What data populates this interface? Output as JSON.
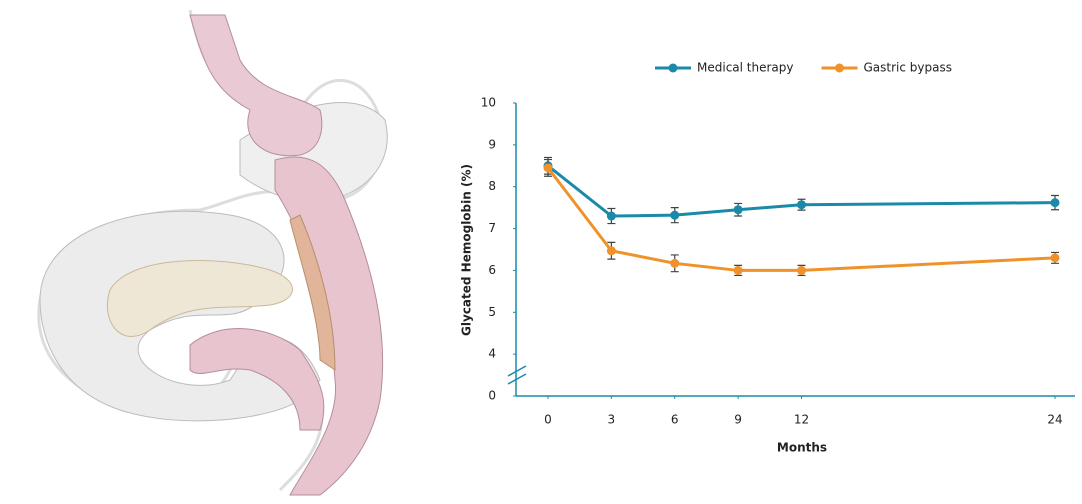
{
  "chart_data": {
    "type": "line",
    "x": [
      0,
      3,
      6,
      9,
      12,
      24
    ],
    "xlabel": "Months",
    "ylabel": "Glycated Hemoglobin (%)",
    "xlim": [
      0,
      24
    ],
    "xticks": [
      0,
      3,
      6,
      9,
      12,
      24
    ],
    "ylim": [
      0,
      10
    ],
    "yticks": [
      0,
      4,
      5,
      6,
      7,
      8,
      9,
      10
    ],
    "axis_break": [
      0,
      4
    ],
    "axis_color": "#1a8aa8",
    "legend": "top",
    "series": [
      {
        "name": "Medical therapy",
        "color": "#1a8aa8",
        "values": [
          8.5,
          7.3,
          7.32,
          7.45,
          7.57,
          7.62
        ],
        "errors": [
          0.2,
          0.18,
          0.18,
          0.15,
          0.13,
          0.17
        ]
      },
      {
        "name": "Gastric bypass",
        "color": "#f0922a",
        "values": [
          8.45,
          6.47,
          6.17,
          6.0,
          6.0,
          6.3
        ],
        "errors": [
          0.2,
          0.2,
          0.2,
          0.12,
          0.12,
          0.13
        ]
      }
    ]
  }
}
